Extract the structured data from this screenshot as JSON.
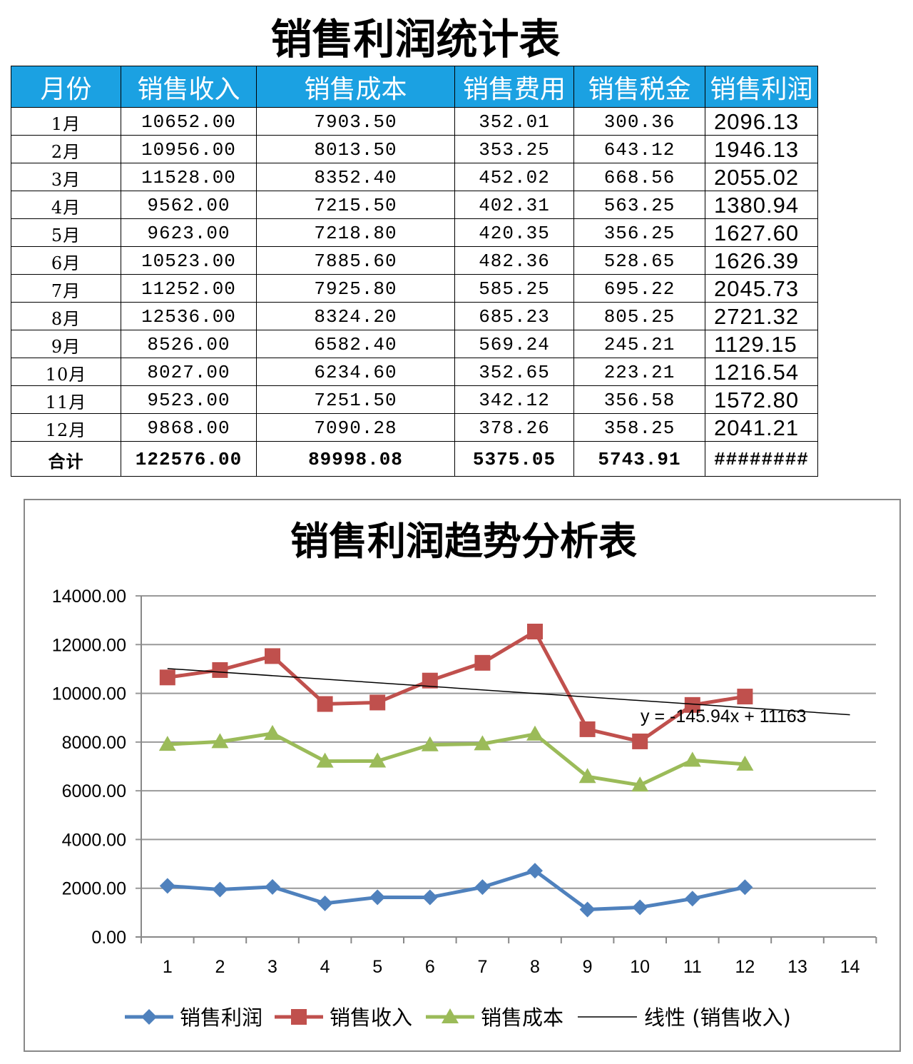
{
  "table": {
    "title": "销售利润统计表",
    "headers": [
      "月份",
      "销售收入",
      "销售成本",
      "销售费用",
      "销售税金",
      "销售利润"
    ],
    "rows": [
      [
        "1月",
        "10652.00",
        "7903.50",
        "352.01",
        "300.36",
        "2096.13"
      ],
      [
        "2月",
        "10956.00",
        "8013.50",
        "353.25",
        "643.12",
        "1946.13"
      ],
      [
        "3月",
        "11528.00",
        "8352.40",
        "452.02",
        "668.56",
        "2055.02"
      ],
      [
        "4月",
        "9562.00",
        "7215.50",
        "402.31",
        "563.25",
        "1380.94"
      ],
      [
        "5月",
        "9623.00",
        "7218.80",
        "420.35",
        "356.25",
        "1627.60"
      ],
      [
        "6月",
        "10523.00",
        "7885.60",
        "482.36",
        "528.65",
        "1626.39"
      ],
      [
        "7月",
        "11252.00",
        "7925.80",
        "585.25",
        "695.22",
        "2045.73"
      ],
      [
        "8月",
        "12536.00",
        "8324.20",
        "685.23",
        "805.25",
        "2721.32"
      ],
      [
        "9月",
        "8526.00",
        "6582.40",
        "569.24",
        "245.21",
        "1129.15"
      ],
      [
        "10月",
        "8027.00",
        "6234.60",
        "352.65",
        "223.21",
        "1216.54"
      ],
      [
        "11月",
        "9523.00",
        "7251.50",
        "342.12",
        "356.58",
        "1572.80"
      ],
      [
        "12月",
        "9868.00",
        "7090.28",
        "378.26",
        "358.25",
        "2041.21"
      ]
    ],
    "total": [
      "合计",
      "122576.00",
      "89998.08",
      "5375.05",
      "5743.91",
      "########"
    ]
  },
  "chart_data": {
    "type": "line",
    "title": "销售利润趋势分析表",
    "x": [
      1,
      2,
      3,
      4,
      5,
      6,
      7,
      8,
      9,
      10,
      11,
      12
    ],
    "x_ticks": [
      "1",
      "2",
      "3",
      "4",
      "5",
      "6",
      "7",
      "8",
      "9",
      "10",
      "11",
      "12",
      "13",
      "14"
    ],
    "y_ticks": [
      "0.00",
      "2000.00",
      "4000.00",
      "6000.00",
      "8000.00",
      "10000.00",
      "12000.00",
      "14000.00"
    ],
    "ylim": [
      0,
      14000
    ],
    "grid": true,
    "legend_position": "bottom",
    "series": [
      {
        "name": "销售利润",
        "color": "#4F81BD",
        "marker": "diamond",
        "values": [
          2096.13,
          1946.13,
          2055.02,
          1380.94,
          1627.6,
          1626.39,
          2045.73,
          2721.32,
          1129.15,
          1216.54,
          1572.8,
          2041.21
        ]
      },
      {
        "name": "销售收入",
        "color": "#C0504D",
        "marker": "square",
        "values": [
          10652,
          10956,
          11528,
          9562,
          9623,
          10523,
          11252,
          12536,
          8526,
          8027,
          9523,
          9868
        ]
      },
      {
        "name": "销售成本",
        "color": "#9BBB59",
        "marker": "triangle",
        "values": [
          7903.5,
          8013.5,
          8352.4,
          7215.5,
          7218.8,
          7885.6,
          7925.8,
          8324.2,
          6582.4,
          6234.6,
          7251.5,
          7090.28
        ]
      }
    ],
    "trendline": {
      "name": "线性 (销售收入)",
      "equation": "y = -145.94x + 11163",
      "slope": -145.94,
      "intercept": 11163,
      "x_range": [
        1,
        14
      ],
      "color": "#000000"
    }
  }
}
